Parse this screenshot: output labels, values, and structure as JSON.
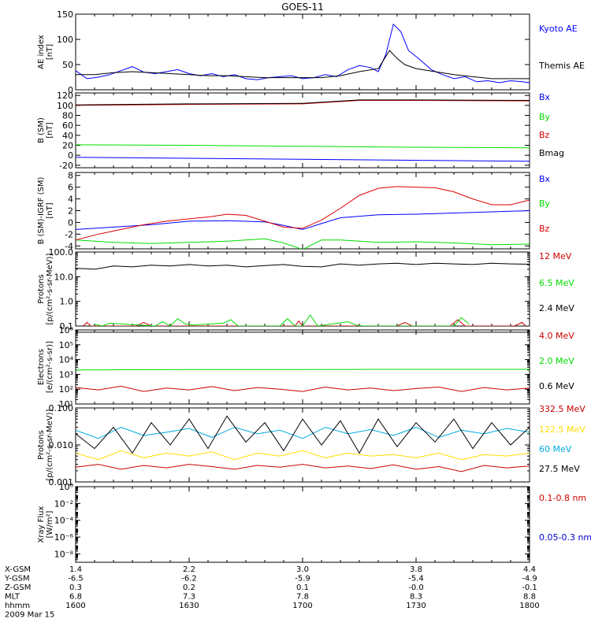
{
  "title": "GOES-11",
  "chart_data": [
    {
      "type": "line",
      "ylabel": [
        "AE index",
        "[nT]"
      ],
      "scale": "linear",
      "ylim": [
        0,
        150
      ],
      "yticks": [
        0,
        50,
        100,
        150
      ],
      "ticklabels": [
        "0",
        "50",
        "100",
        "150"
      ],
      "series": [
        {
          "name": "Kyoto AE",
          "color": "#0000ff",
          "x": [
            1600,
            1603,
            1606,
            1609,
            1612,
            1615,
            1618,
            1621,
            1624,
            1627,
            1630,
            1633,
            1636,
            1639,
            1642,
            1645,
            1648,
            1651,
            1654,
            1657,
            1700,
            1703,
            1706,
            1709,
            1712,
            1715,
            1718,
            1720,
            1722,
            1724,
            1726,
            1728,
            1731,
            1734,
            1737,
            1740,
            1743,
            1746,
            1749,
            1752,
            1755,
            1758,
            1800
          ],
          "y": [
            38,
            22,
            25,
            30,
            38,
            46,
            35,
            32,
            36,
            40,
            32,
            28,
            32,
            26,
            30,
            22,
            20,
            24,
            26,
            28,
            22,
            24,
            30,
            26,
            40,
            48,
            44,
            36,
            70,
            130,
            115,
            78,
            60,
            40,
            30,
            22,
            26,
            16,
            18,
            14,
            18,
            16,
            14
          ]
        },
        {
          "name": "Themis AE",
          "color": "#000000",
          "x": [
            1600,
            1605,
            1610,
            1615,
            1620,
            1625,
            1630,
            1635,
            1640,
            1645,
            1650,
            1655,
            1700,
            1705,
            1710,
            1715,
            1720,
            1723,
            1725,
            1727,
            1730,
            1735,
            1740,
            1745,
            1750,
            1755,
            1800
          ],
          "y": [
            30,
            30,
            34,
            36,
            34,
            32,
            30,
            28,
            28,
            26,
            24,
            24,
            24,
            24,
            28,
            36,
            42,
            78,
            62,
            50,
            42,
            36,
            30,
            26,
            22,
            22,
            22
          ]
        }
      ]
    },
    {
      "type": "line",
      "ylabel": [
        "B (SM)",
        "[nT]"
      ],
      "scale": "linear",
      "ylim": [
        -25,
        125
      ],
      "yticks": [
        -20,
        0,
        20,
        40,
        60,
        80,
        100,
        120
      ],
      "ticklabels": [
        "-20",
        "0",
        "20",
        "40",
        "60",
        "80",
        "100",
        "120"
      ],
      "series": [
        {
          "name": "Bx",
          "color": "#0000ff",
          "x": [
            1600,
            1800
          ],
          "y": [
            -4,
            -12
          ]
        },
        {
          "name": "By",
          "color": "#00dd00",
          "x": [
            1600,
            1630,
            1700,
            1730,
            1800
          ],
          "y": [
            21,
            20,
            18,
            16,
            15
          ]
        },
        {
          "name": "Bz",
          "color": "#dd0000",
          "x": [
            1600,
            1630,
            1700,
            1715,
            1730,
            1800
          ],
          "y": [
            100,
            102,
            103,
            110,
            110,
            109
          ]
        },
        {
          "name": "Bmag",
          "color": "#000000",
          "x": [
            1600,
            1630,
            1700,
            1715,
            1730,
            1800
          ],
          "y": [
            101,
            103,
            104,
            111,
            111,
            110
          ]
        }
      ]
    },
    {
      "type": "line",
      "ylabel": [
        "B (SM)-IGRF (SM)",
        "[nT]"
      ],
      "scale": "linear",
      "ylim": [
        -4.5,
        8.5
      ],
      "yticks": [
        -4,
        -2,
        0,
        2,
        4,
        6,
        8
      ],
      "ticklabels": [
        "-4",
        "-2",
        "0",
        "2",
        "4",
        "6",
        "8"
      ],
      "series": [
        {
          "name": "Bx",
          "color": "#0000ff",
          "x": [
            1600,
            1610,
            1620,
            1630,
            1640,
            1650,
            1655,
            1700,
            1705,
            1710,
            1720,
            1730,
            1740,
            1750,
            1800
          ],
          "y": [
            -1.2,
            -0.8,
            -0.4,
            0.2,
            0.3,
            0.1,
            -0.5,
            -1.2,
            -0.2,
            0.8,
            1.3,
            1.4,
            1.6,
            1.8,
            2.0
          ]
        },
        {
          "name": "By",
          "color": "#00dd00",
          "x": [
            1600,
            1610,
            1620,
            1630,
            1640,
            1650,
            1655,
            1700,
            1705,
            1710,
            1720,
            1730,
            1740,
            1750,
            1800
          ],
          "y": [
            -3.0,
            -3.4,
            -3.6,
            -3.4,
            -3.2,
            -2.8,
            -3.5,
            -4.6,
            -3.0,
            -3.0,
            -3.4,
            -3.3,
            -3.5,
            -3.8,
            -3.7
          ]
        },
        {
          "name": "Bz",
          "color": "#dd0000",
          "x": [
            1600,
            1606,
            1612,
            1618,
            1624,
            1630,
            1636,
            1640,
            1645,
            1650,
            1655,
            1700,
            1705,
            1710,
            1715,
            1720,
            1725,
            1730,
            1735,
            1740,
            1745,
            1750,
            1755,
            1800
          ],
          "y": [
            -3.0,
            -2.0,
            -1.2,
            -0.4,
            0.2,
            0.6,
            1.0,
            1.4,
            1.2,
            0.2,
            -0.8,
            -1.0,
            0.4,
            2.4,
            4.6,
            5.8,
            6.1,
            6.0,
            5.9,
            5.2,
            4.0,
            3.0,
            3.0,
            3.8
          ]
        }
      ]
    },
    {
      "type": "line",
      "ylabel": [
        "Protons",
        "[p/(cm²-s-sr-MeV)]"
      ],
      "scale": "log",
      "ylim": [
        0.1,
        100
      ],
      "yticks": [
        0.1,
        1,
        10,
        100
      ],
      "ticklabels": [
        "0.1",
        "1.0",
        "10.0",
        "100.0"
      ],
      "series": [
        {
          "name": "12 MeV",
          "color": "#cc0000",
          "x": [
            1602,
            1603,
            1604,
            1616,
            1618,
            1620,
            1658,
            1659,
            1660,
            1725,
            1727,
            1729,
            1739,
            1741,
            1743,
            1756,
            1758,
            1759
          ],
          "y": [
            0.1,
            0.14,
            0.1,
            0.1,
            0.14,
            0.1,
            0.1,
            0.16,
            0.1,
            0.1,
            0.14,
            0.1,
            0.1,
            0.18,
            0.1,
            0.1,
            0.14,
            0.1
          ]
        },
        {
          "name": "6.5 MeV",
          "color": "#00dd00",
          "x": [
            1605,
            1607,
            1609,
            1621,
            1623,
            1625,
            1627,
            1629,
            1631,
            1639,
            1641,
            1643,
            1654,
            1656,
            1658,
            1700,
            1702,
            1704,
            1712,
            1714,
            1716,
            1740,
            1742,
            1744
          ],
          "y": [
            0.12,
            0.1,
            0.13,
            0.1,
            0.15,
            0.1,
            0.2,
            0.12,
            0.11,
            0.13,
            0.18,
            0.1,
            0.1,
            0.2,
            0.1,
            0.1,
            0.28,
            0.1,
            0.15,
            0.11,
            0.1,
            0.1,
            0.22,
            0.12
          ]
        },
        {
          "name": "2.4 MeV",
          "color": "#000000",
          "x": [
            1600,
            1605,
            1610,
            1615,
            1620,
            1625,
            1630,
            1635,
            1640,
            1645,
            1650,
            1655,
            1700,
            1705,
            1710,
            1715,
            1720,
            1725,
            1730,
            1735,
            1740,
            1745,
            1750,
            1755,
            1800
          ],
          "y": [
            22,
            20,
            27,
            25,
            29,
            27,
            31,
            27,
            29,
            25,
            28,
            31,
            26,
            25,
            33,
            29,
            33,
            35,
            31,
            35,
            33,
            31,
            35,
            33,
            32
          ]
        }
      ]
    },
    {
      "type": "line",
      "ylabel": [
        "Electrons",
        "[e/(cm²-s-sr)]"
      ],
      "scale": "log",
      "ylim": [
        10,
        1000000
      ],
      "yticks": [
        10,
        100,
        1000,
        10000,
        100000,
        1000000
      ],
      "ticklabels": [
        "10¹",
        "10²",
        "10³",
        "10⁴",
        "10⁵",
        "10⁶"
      ],
      "series": [
        {
          "name": "4.0 MeV",
          "color": "#cc0000",
          "x": [
            1600,
            1606,
            1612,
            1618,
            1624,
            1630,
            1636,
            1642,
            1648,
            1654,
            1700,
            1706,
            1712,
            1718,
            1724,
            1730,
            1736,
            1742,
            1748,
            1754,
            1800
          ],
          "y": [
            130,
            90,
            160,
            70,
            120,
            90,
            150,
            80,
            130,
            100,
            70,
            140,
            90,
            120,
            80,
            110,
            140,
            70,
            130,
            90,
            120
          ]
        },
        {
          "name": "2.0 MeV",
          "color": "#00dd00",
          "x": [
            1600,
            1630,
            1700,
            1730,
            1800
          ],
          "y": [
            2000,
            2100,
            2100,
            2200,
            2200
          ]
        },
        {
          "name": "0.6 MeV",
          "color": "#000000",
          "x": [
            1600,
            1800
          ],
          "y": [
            700000,
            700000
          ]
        }
      ]
    },
    {
      "type": "line",
      "ylabel": [
        "Protons",
        "[p/(cm²-s-sr-MeV)]"
      ],
      "scale": "log",
      "ylim": [
        0.001,
        0.1
      ],
      "yticks": [
        0.001,
        0.01,
        0.1
      ],
      "ticklabels": [
        "0.001",
        "0.010",
        "0.100"
      ],
      "series": [
        {
          "name": "332.5 MeV",
          "color": "#cc0000",
          "x": [
            1600,
            1606,
            1612,
            1618,
            1624,
            1630,
            1636,
            1642,
            1648,
            1654,
            1700,
            1706,
            1712,
            1718,
            1724,
            1730,
            1736,
            1742,
            1748,
            1754,
            1800
          ],
          "y": [
            0.0025,
            0.003,
            0.0022,
            0.0028,
            0.0024,
            0.003,
            0.0026,
            0.0022,
            0.0028,
            0.0025,
            0.003,
            0.0024,
            0.0027,
            0.0023,
            0.0029,
            0.0022,
            0.0026,
            0.0019,
            0.0028,
            0.0024,
            0.0027
          ]
        },
        {
          "name": "122.5 MeV",
          "color": "#ffdd00",
          "x": [
            1600,
            1606,
            1612,
            1618,
            1624,
            1630,
            1636,
            1642,
            1648,
            1654,
            1700,
            1706,
            1712,
            1718,
            1724,
            1730,
            1736,
            1742,
            1748,
            1754,
            1800
          ],
          "y": [
            0.006,
            0.004,
            0.007,
            0.0045,
            0.006,
            0.005,
            0.0065,
            0.004,
            0.006,
            0.005,
            0.007,
            0.0045,
            0.006,
            0.005,
            0.0055,
            0.0045,
            0.006,
            0.004,
            0.0055,
            0.005,
            0.006
          ]
        },
        {
          "name": "60 MeV",
          "color": "#00aadd",
          "x": [
            1600,
            1606,
            1612,
            1618,
            1624,
            1630,
            1636,
            1642,
            1648,
            1654,
            1700,
            1706,
            1712,
            1718,
            1724,
            1730,
            1736,
            1742,
            1748,
            1754,
            1800
          ],
          "y": [
            0.025,
            0.015,
            0.03,
            0.018,
            0.022,
            0.028,
            0.016,
            0.03,
            0.02,
            0.025,
            0.015,
            0.03,
            0.02,
            0.026,
            0.018,
            0.03,
            0.016,
            0.025,
            0.02,
            0.028,
            0.022
          ]
        },
        {
          "name": "27.5 MeV",
          "color": "#000000",
          "x": [
            1600,
            1605,
            1610,
            1615,
            1620,
            1625,
            1630,
            1635,
            1640,
            1645,
            1650,
            1655,
            1700,
            1705,
            1710,
            1715,
            1720,
            1725,
            1730,
            1735,
            1740,
            1745,
            1750,
            1755,
            1800
          ],
          "y": [
            0.02,
            0.008,
            0.03,
            0.006,
            0.04,
            0.01,
            0.05,
            0.008,
            0.06,
            0.012,
            0.04,
            0.007,
            0.05,
            0.01,
            0.045,
            0.006,
            0.05,
            0.009,
            0.04,
            0.012,
            0.05,
            0.008,
            0.04,
            0.01,
            0.03
          ]
        }
      ]
    },
    {
      "type": "line",
      "ylabel": [
        "Xray Flux",
        "[W/m²]"
      ],
      "scale": "log",
      "ylim": [
        1e-09,
        1
      ],
      "yticks": [
        1e-08,
        1e-06,
        0.0001,
        0.01,
        1
      ],
      "ticklabels": [
        "10⁻⁸",
        "10⁻⁶",
        "10⁻⁴",
        "10⁻²",
        "10⁰"
      ],
      "series": [
        {
          "name": "0.1-0.8 nm",
          "color": "#cc0000",
          "x": [],
          "y": []
        },
        {
          "name": "0.05-0.3 nm",
          "color": "#0000cc",
          "x": [],
          "y": []
        }
      ]
    }
  ],
  "xaxis": {
    "range": [
      1600,
      1800
    ],
    "rows": [
      {
        "label": "X-GSM",
        "values": [
          "1.4",
          "2.2",
          "3.0",
          "3.8",
          "4.4"
        ]
      },
      {
        "label": "Y-GSM",
        "values": [
          "-6.5",
          "-6.2",
          "-5.9",
          "-5.4",
          "-4.9"
        ]
      },
      {
        "label": "Z-GSM",
        "values": [
          "0.3",
          "0.2",
          "0.1",
          "-0.0",
          "-0.1"
        ]
      },
      {
        "label": "MLT",
        "values": [
          "6.8",
          "7.3",
          "7.8",
          "8.3",
          "8.8"
        ]
      },
      {
        "label": "hhmm",
        "values": [
          "1600",
          "1630",
          "1700",
          "1730",
          "1800"
        ]
      }
    ],
    "date": "2009 Mar 15"
  }
}
